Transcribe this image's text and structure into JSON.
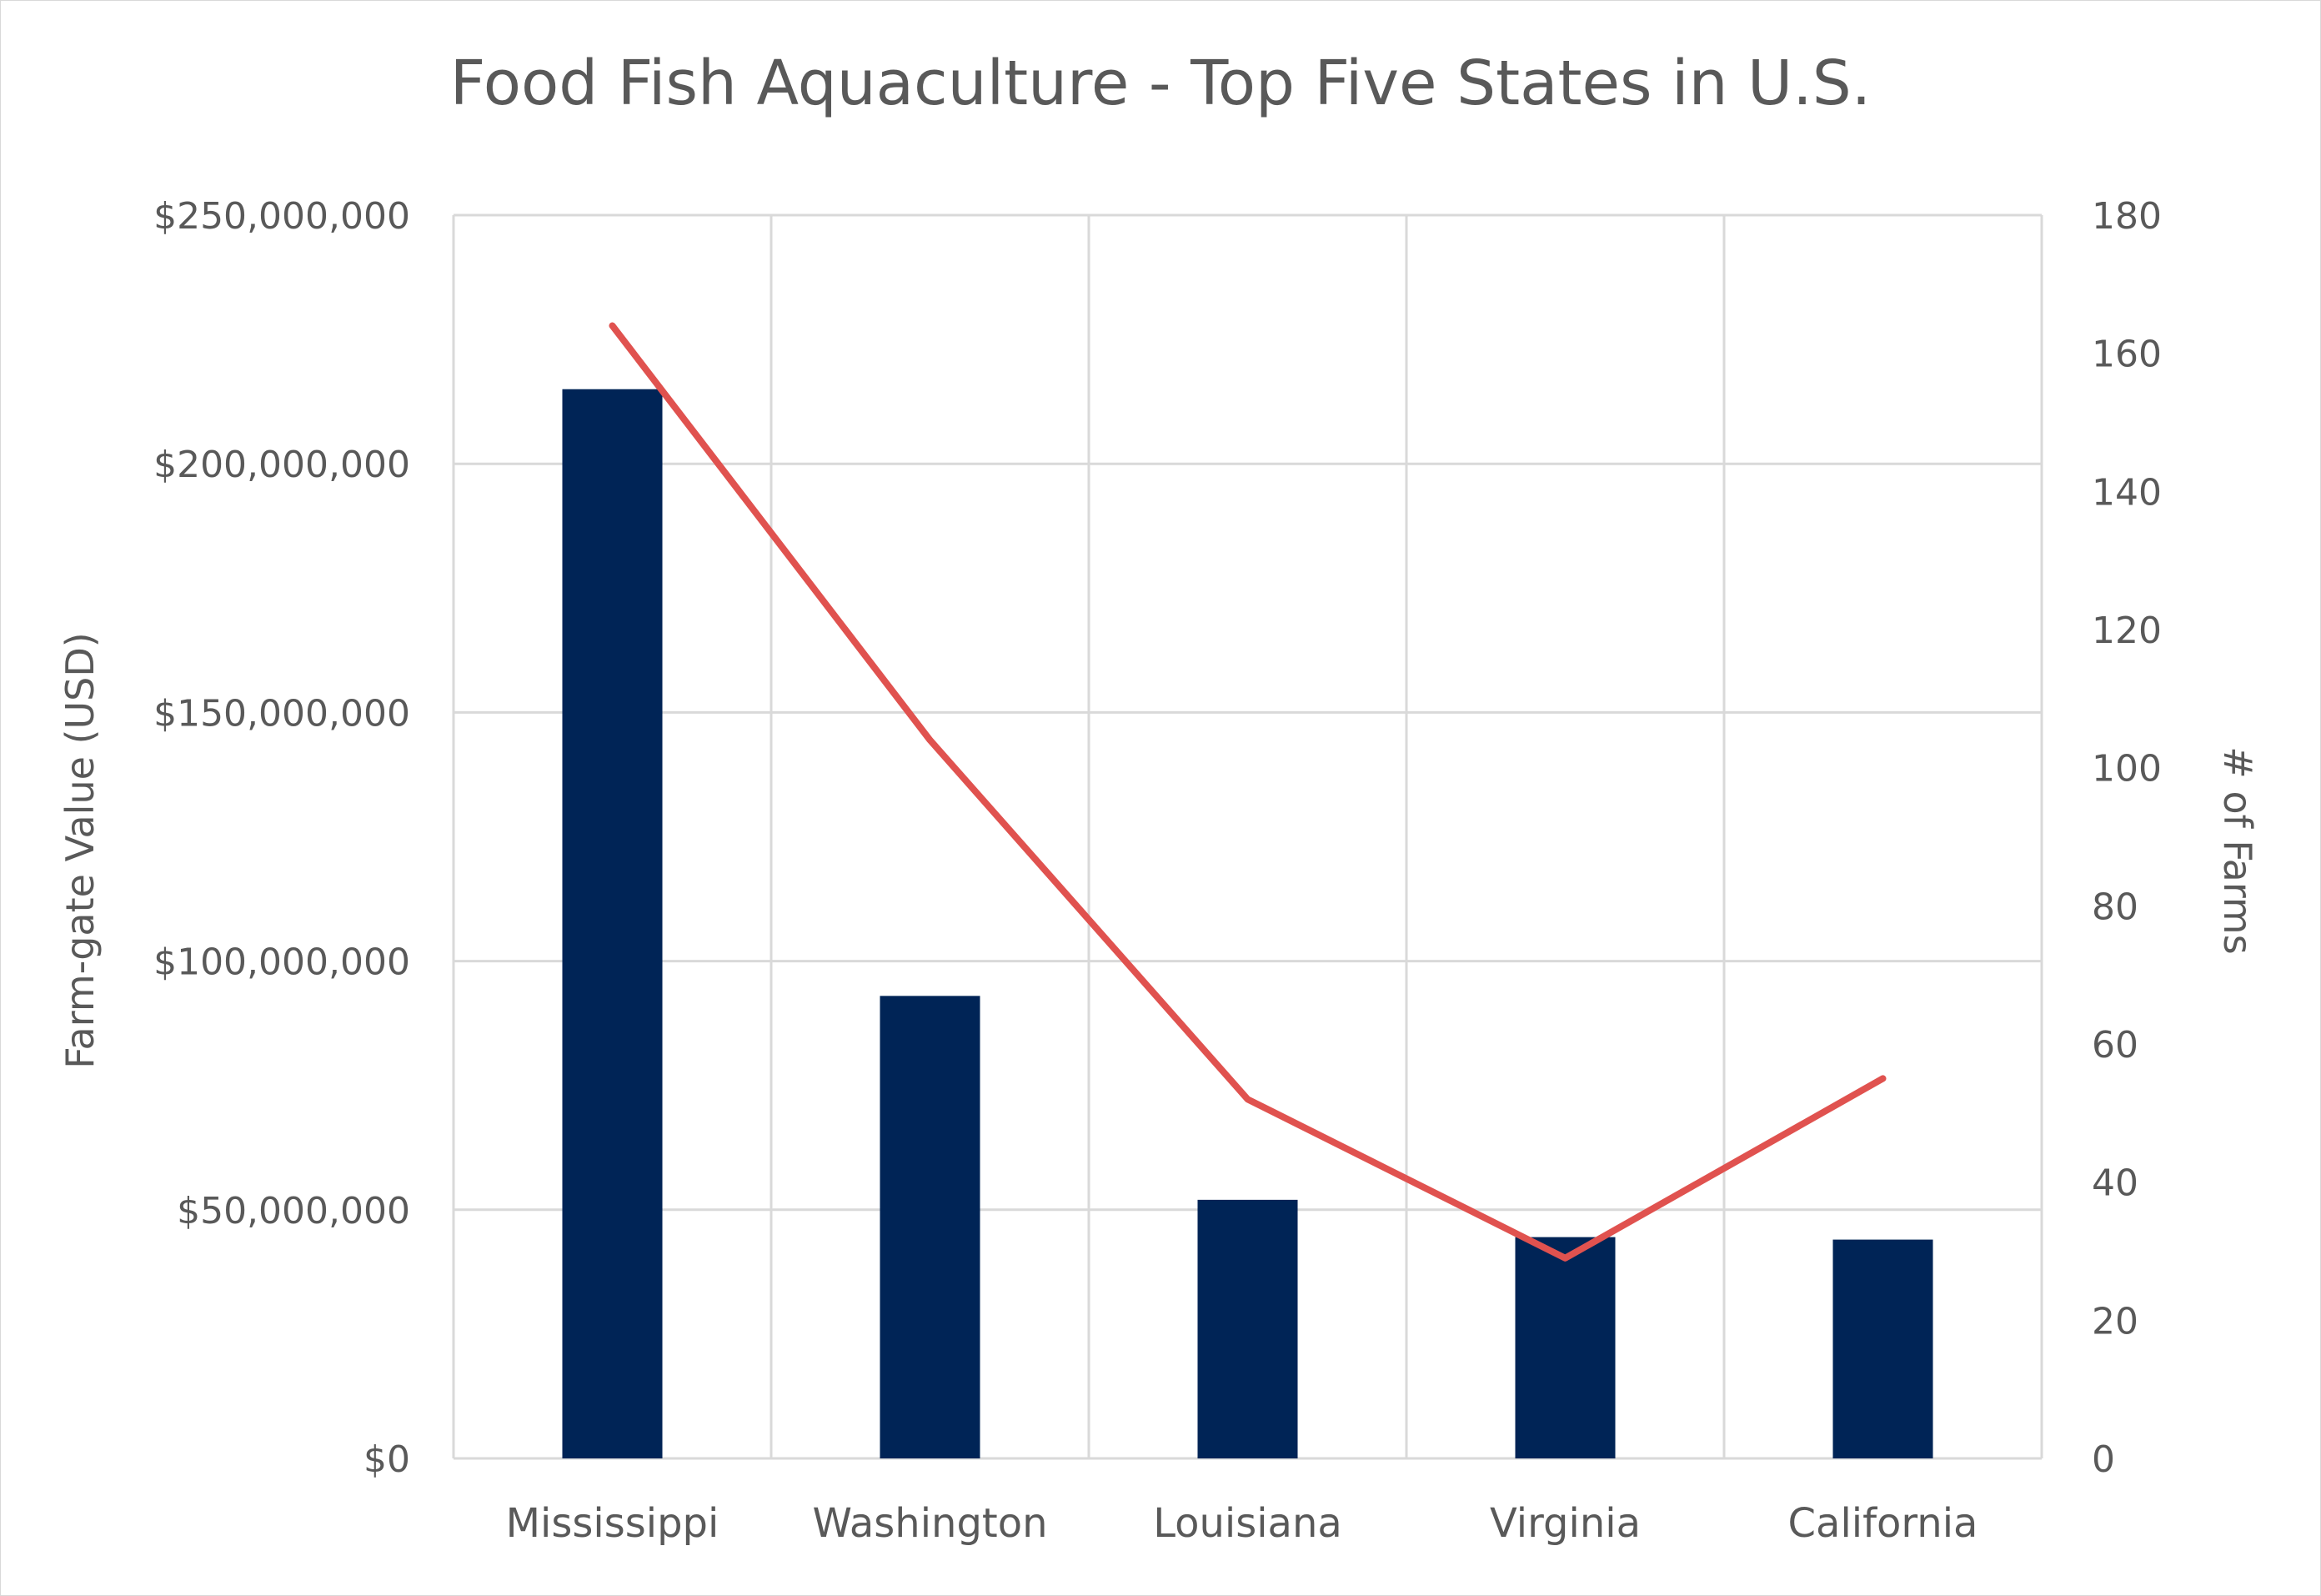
{
  "chart_data": {
    "type": "bar",
    "title": "Food Fish Aquaculture - Top Five States in U.S.",
    "categories": [
      "Mississippi",
      "Washington",
      "Louisiana",
      "Virginia",
      "California"
    ],
    "series": [
      {
        "type": "bar",
        "axis": "left",
        "values": [
          215000000,
          93000000,
          52000000,
          44500000,
          44000000
        ],
        "color": "#002456"
      },
      {
        "type": "line",
        "axis": "right",
        "values": [
          164,
          104,
          52,
          29,
          55
        ],
        "color": "#e0524f"
      }
    ],
    "ylabel": "Farm-gate Value (USD)",
    "ylim": [
      0,
      250000000
    ],
    "yticks": [
      0,
      50000000,
      100000000,
      150000000,
      200000000,
      250000000
    ],
    "ytick_labels": [
      "$0",
      "$50,000,000",
      "$100,000,000",
      "$150,000,000",
      "$200,000,000",
      "$250,000,000"
    ],
    "y2label": "# of Farms",
    "y2lim": [
      0,
      180
    ],
    "y2ticks": [
      0,
      20,
      40,
      60,
      80,
      100,
      120,
      140,
      160,
      180
    ],
    "y2tick_labels": [
      "0",
      "20",
      "40",
      "60",
      "80",
      "100",
      "120",
      "140",
      "160",
      "180"
    ],
    "grid": true,
    "legend": "none"
  }
}
